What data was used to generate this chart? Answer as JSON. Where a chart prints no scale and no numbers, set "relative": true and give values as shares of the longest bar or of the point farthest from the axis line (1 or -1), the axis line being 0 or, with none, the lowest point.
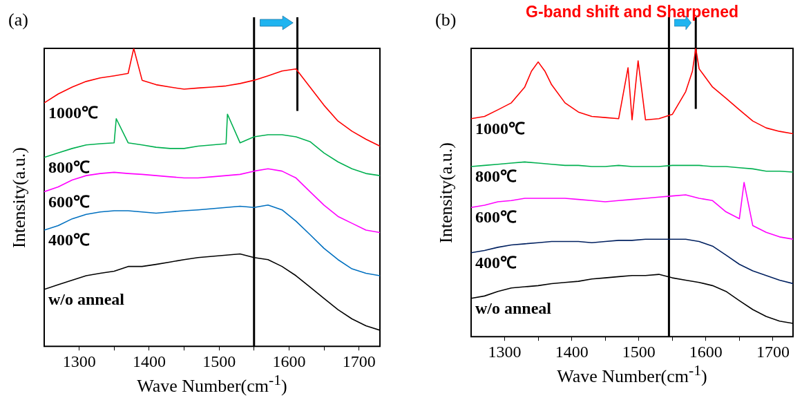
{
  "chart_data": [
    {
      "type": "line",
      "xlabel": "Wave Number(cm$^{-1}$)",
      "ylabel": "Intensity(a.u.)",
      "annotations": [
        "(a)"
      ],
      "relative": true,
      "legend": false,
      "grid": false,
      "xlim": [
        1250,
        1730
      ],
      "xticks": [
        1300,
        {
          "value": 1350,
          "label": null
        },
        1400,
        {
          "value": 1450,
          "label": null
        },
        1500,
        {
          "value": 1550,
          "label": null
        },
        1600,
        {
          "value": 1650,
          "label": null
        },
        1700
      ],
      "ref_lines": [
        {
          "axis": "x",
          "value": 1550,
          "color": "#000000"
        },
        {
          "axis": "x",
          "value": 1612,
          "color": "#000000"
        }
      ],
      "series": [
        {
          "name": "1000℃",
          "color": "#ff0000",
          "x": [
            1250,
            1270,
            1290,
            1310,
            1330,
            1350,
            1370,
            1378,
            1390,
            1410,
            1430,
            1450,
            1470,
            1490,
            1510,
            1530,
            1550,
            1570,
            1590,
            1610,
            1630,
            1650,
            1670,
            1690,
            1710,
            1730
          ],
          "values": [
            0.817,
            0.847,
            0.87,
            0.889,
            0.901,
            0.908,
            0.916,
            1.0,
            0.893,
            0.878,
            0.87,
            0.863,
            0.867,
            0.87,
            0.874,
            0.882,
            0.893,
            0.908,
            0.924,
            0.931,
            0.87,
            0.809,
            0.756,
            0.722,
            0.695,
            0.672
          ]
        },
        {
          "name": "800℃",
          "color": "#00b050",
          "x": [
            1250,
            1270,
            1290,
            1310,
            1330,
            1350,
            1353,
            1370,
            1390,
            1410,
            1430,
            1450,
            1470,
            1490,
            1510,
            1512,
            1530,
            1550,
            1570,
            1590,
            1610,
            1630,
            1650,
            1670,
            1690,
            1710,
            1730
          ],
          "values": [
            0.634,
            0.649,
            0.664,
            0.676,
            0.68,
            0.683,
            0.764,
            0.683,
            0.676,
            0.668,
            0.664,
            0.664,
            0.672,
            0.676,
            0.68,
            0.779,
            0.683,
            0.703,
            0.71,
            0.71,
            0.703,
            0.687,
            0.649,
            0.619,
            0.596,
            0.58,
            0.573
          ]
        },
        {
          "name": "600℃",
          "color": "#ff00ff",
          "x": [
            1250,
            1270,
            1290,
            1310,
            1330,
            1350,
            1370,
            1390,
            1410,
            1430,
            1450,
            1470,
            1490,
            1510,
            1530,
            1550,
            1570,
            1590,
            1610,
            1630,
            1650,
            1670,
            1690,
            1710,
            1730
          ],
          "values": [
            0.519,
            0.535,
            0.558,
            0.573,
            0.58,
            0.584,
            0.58,
            0.577,
            0.573,
            0.569,
            0.565,
            0.565,
            0.569,
            0.573,
            0.577,
            0.588,
            0.596,
            0.588,
            0.565,
            0.519,
            0.474,
            0.436,
            0.413,
            0.39,
            0.382
          ]
        },
        {
          "name": "400℃",
          "color": "#0070c0",
          "x": [
            1250,
            1270,
            1290,
            1310,
            1330,
            1350,
            1370,
            1390,
            1410,
            1430,
            1450,
            1470,
            1490,
            1510,
            1530,
            1550,
            1570,
            1590,
            1610,
            1630,
            1650,
            1670,
            1690,
            1710,
            1730
          ],
          "values": [
            0.39,
            0.405,
            0.428,
            0.443,
            0.451,
            0.455,
            0.455,
            0.451,
            0.447,
            0.451,
            0.455,
            0.458,
            0.462,
            0.466,
            0.47,
            0.466,
            0.474,
            0.458,
            0.42,
            0.375,
            0.329,
            0.291,
            0.26,
            0.245,
            0.237
          ]
        },
        {
          "name": "w/o anneal",
          "color": "#000000",
          "x": [
            1250,
            1270,
            1290,
            1310,
            1330,
            1350,
            1370,
            1390,
            1410,
            1430,
            1450,
            1470,
            1490,
            1510,
            1530,
            1550,
            1570,
            1590,
            1610,
            1630,
            1650,
            1670,
            1690,
            1710,
            1730
          ],
          "values": [
            0.191,
            0.207,
            0.222,
            0.237,
            0.245,
            0.252,
            0.268,
            0.268,
            0.275,
            0.283,
            0.291,
            0.298,
            0.302,
            0.306,
            0.31,
            0.298,
            0.291,
            0.268,
            0.237,
            0.199,
            0.161,
            0.123,
            0.092,
            0.069,
            0.054
          ]
        }
      ]
    },
    {
      "type": "line",
      "title": "G-band shift and Sharpened",
      "xlabel": "Wave Number(cm$^{-1}$)",
      "ylabel": "Intensity(a.u.)",
      "annotations": [
        "(b)"
      ],
      "relative": true,
      "legend": false,
      "grid": false,
      "xlim": [
        1250,
        1730
      ],
      "xticks": [
        1300,
        {
          "value": 1350,
          "label": null
        },
        1400,
        {
          "value": 1450,
          "label": null
        },
        1500,
        {
          "value": 1550,
          "label": null
        },
        1600,
        {
          "value": 1650,
          "label": null
        },
        1700
      ],
      "ref_lines": [
        {
          "axis": "x",
          "value": 1545,
          "color": "#000000"
        },
        {
          "axis": "x",
          "value": 1585,
          "color": "#000000"
        }
      ],
      "series": [
        {
          "name": "1000℃",
          "color": "#ff0000",
          "x": [
            1250,
            1270,
            1290,
            1310,
            1330,
            1340,
            1350,
            1360,
            1370,
            1390,
            1410,
            1430,
            1450,
            1470,
            1484,
            1490,
            1499,
            1510,
            1530,
            1550,
            1570,
            1580,
            1585,
            1590,
            1610,
            1630,
            1650,
            1670,
            1690,
            1710,
            1730
          ],
          "values": [
            0.756,
            0.764,
            0.787,
            0.811,
            0.866,
            0.921,
            0.953,
            0.921,
            0.874,
            0.811,
            0.779,
            0.764,
            0.76,
            0.756,
            0.933,
            0.752,
            0.957,
            0.752,
            0.756,
            0.771,
            0.85,
            0.921,
            1.0,
            0.929,
            0.866,
            0.827,
            0.787,
            0.748,
            0.724,
            0.712,
            0.704
          ]
        },
        {
          "name": "800℃",
          "color": "#00b050",
          "x": [
            1250,
            1270,
            1290,
            1310,
            1330,
            1350,
            1370,
            1390,
            1410,
            1430,
            1450,
            1470,
            1490,
            1510,
            1530,
            1550,
            1570,
            1590,
            1610,
            1630,
            1650,
            1670,
            1690,
            1710,
            1730
          ],
          "values": [
            0.59,
            0.594,
            0.598,
            0.602,
            0.606,
            0.602,
            0.598,
            0.594,
            0.594,
            0.59,
            0.59,
            0.594,
            0.59,
            0.59,
            0.59,
            0.594,
            0.594,
            0.594,
            0.59,
            0.59,
            0.586,
            0.582,
            0.574,
            0.574,
            0.571
          ]
        },
        {
          "name": "600℃",
          "color": "#ff00ff",
          "x": [
            1250,
            1270,
            1290,
            1310,
            1330,
            1350,
            1370,
            1390,
            1410,
            1430,
            1450,
            1470,
            1490,
            1510,
            1530,
            1550,
            1570,
            1590,
            1610,
            1630,
            1650,
            1657,
            1670,
            1690,
            1710,
            1730
          ],
          "values": [
            0.448,
            0.456,
            0.468,
            0.472,
            0.48,
            0.48,
            0.48,
            0.48,
            0.476,
            0.472,
            0.468,
            0.472,
            0.476,
            0.48,
            0.484,
            0.488,
            0.492,
            0.48,
            0.472,
            0.433,
            0.409,
            0.535,
            0.385,
            0.362,
            0.346,
            0.338
          ]
        },
        {
          "name": "400℃",
          "color": "#002060",
          "x": [
            1250,
            1270,
            1290,
            1310,
            1330,
            1350,
            1370,
            1390,
            1410,
            1430,
            1450,
            1470,
            1490,
            1510,
            1530,
            1550,
            1570,
            1590,
            1610,
            1630,
            1650,
            1670,
            1690,
            1710,
            1730
          ],
          "values": [
            0.291,
            0.299,
            0.31,
            0.318,
            0.322,
            0.326,
            0.33,
            0.33,
            0.33,
            0.326,
            0.33,
            0.334,
            0.334,
            0.338,
            0.338,
            0.338,
            0.338,
            0.33,
            0.314,
            0.283,
            0.251,
            0.228,
            0.212,
            0.196,
            0.184
          ]
        },
        {
          "name": "w/o anneal",
          "color": "#000000",
          "x": [
            1250,
            1270,
            1290,
            1310,
            1330,
            1350,
            1370,
            1390,
            1410,
            1430,
            1450,
            1470,
            1490,
            1510,
            1530,
            1550,
            1570,
            1590,
            1610,
            1630,
            1650,
            1670,
            1690,
            1710,
            1730
          ],
          "values": [
            0.133,
            0.141,
            0.157,
            0.169,
            0.173,
            0.177,
            0.184,
            0.188,
            0.192,
            0.2,
            0.204,
            0.208,
            0.212,
            0.212,
            0.216,
            0.204,
            0.196,
            0.188,
            0.177,
            0.157,
            0.125,
            0.094,
            0.07,
            0.054,
            0.046
          ]
        }
      ]
    }
  ]
}
